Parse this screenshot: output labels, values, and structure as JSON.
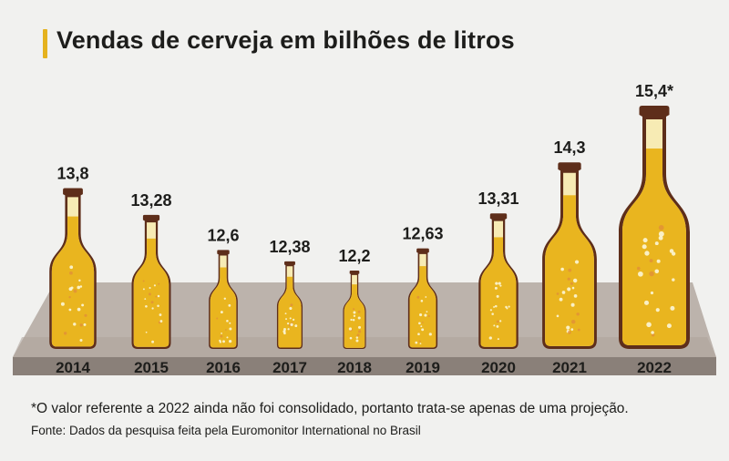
{
  "title": "Vendas de cerveja em bilhões de litros",
  "chart_data": {
    "type": "bar",
    "title": "Vendas de cerveja em bilhões de litros",
    "categories": [
      "2014",
      "2015",
      "2016",
      "2017",
      "2018",
      "2019",
      "2020",
      "2021",
      "2022"
    ],
    "values": [
      13.8,
      13.28,
      12.6,
      12.38,
      12.2,
      12.63,
      13.31,
      14.3,
      15.4
    ],
    "value_labels": [
      "13,8",
      "13,28",
      "12,6",
      "12,38",
      "12,2",
      "12,63",
      "13,31",
      "14,3",
      "15,4*"
    ],
    "unit": "bilhões de litros",
    "xlabel": "",
    "ylabel": "",
    "marker": "bottle",
    "colors": {
      "beer": "#e9b51f",
      "glass": "#5e2e1a",
      "foam": "#f7ebb4",
      "shelf": "#b8aea7"
    }
  },
  "footnote": "*O valor referente a 2022 ainda não foi consolidado, portanto trata-se apenas de uma projeção.",
  "source": "Fonte: Dados da pesquisa feita pela Euromonitor International no Brasil"
}
